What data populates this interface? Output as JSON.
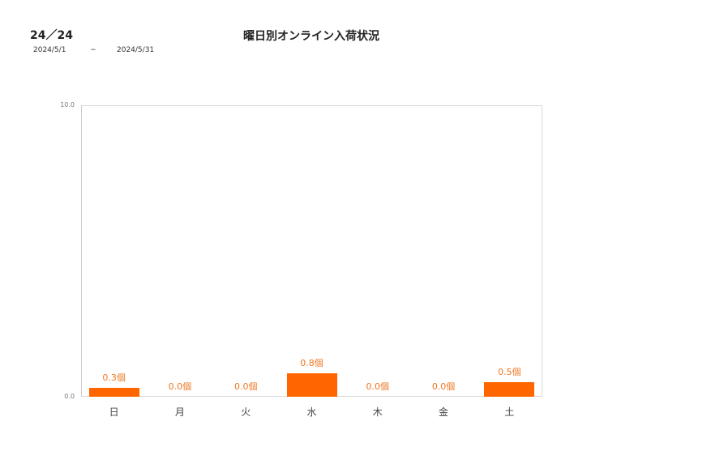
{
  "header": {
    "code": "24／24",
    "date_from": "2024/5/1",
    "date_sep": "~",
    "date_to": "2024/5/31",
    "title": "曜日別オンライン入荷状況"
  },
  "chart_data": {
    "type": "bar",
    "title": "曜日別オンライン入荷状況",
    "categories": [
      "日",
      "月",
      "火",
      "水",
      "木",
      "金",
      "土"
    ],
    "values": [
      0.3,
      0.0,
      0.0,
      0.8,
      0.0,
      0.0,
      0.5
    ],
    "value_labels": [
      "0.3個",
      "0.0個",
      "0.0個",
      "0.8個",
      "0.0個",
      "0.0個",
      "0.5個"
    ],
    "unit": "個",
    "xlabel": "",
    "ylabel": "",
    "ylim": [
      0,
      10
    ],
    "yticks": [
      "0.0",
      "10.0"
    ],
    "grid": false,
    "legend": false,
    "bar_color": "#ff6600",
    "label_color": "#ee7722"
  }
}
